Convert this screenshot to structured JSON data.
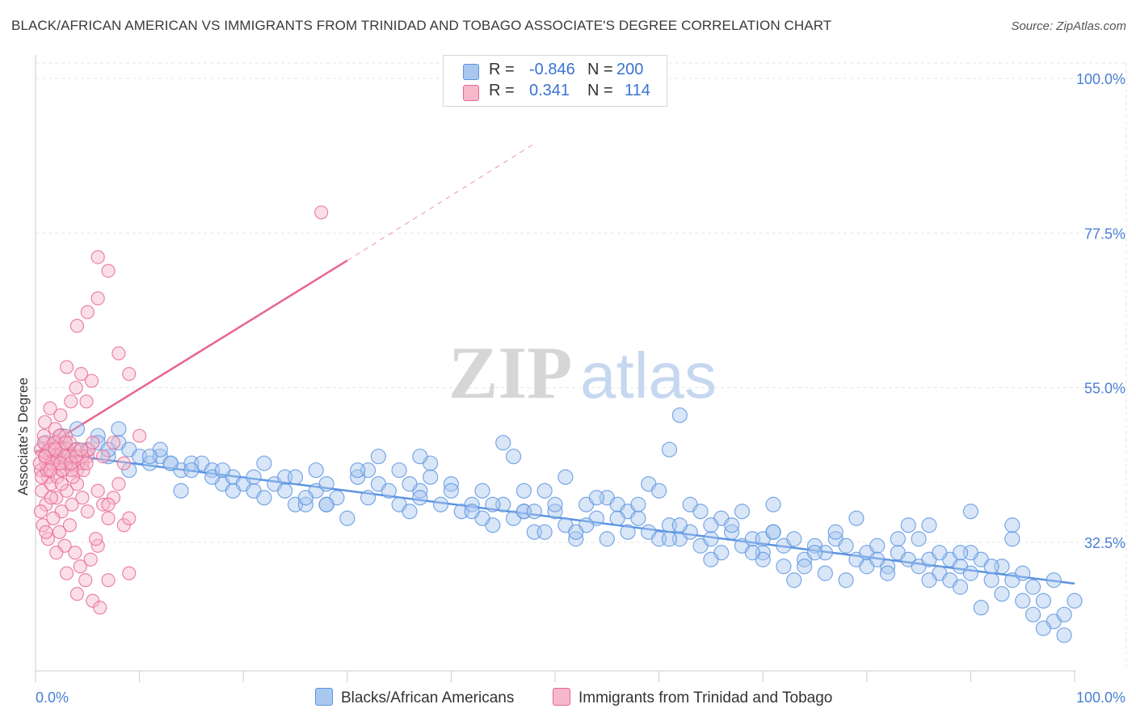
{
  "title": "BLACK/AFRICAN AMERICAN VS IMMIGRANTS FROM TRINIDAD AND TOBAGO ASSOCIATE'S DEGREE CORRELATION CHART",
  "source": "Source: ZipAtlas.com",
  "watermark": {
    "zip": "ZIP",
    "atlas": "atlas"
  },
  "legend": {
    "rows": [
      {
        "r_label": "R =",
        "r_value": "-0.846",
        "n_label": "N =",
        "n_value": "200",
        "color": "#a9c8f0"
      },
      {
        "r_label": "R =",
        "r_value": "0.341",
        "n_label": "N =",
        "n_value": "114",
        "color": "#f7b8cb"
      }
    ]
  },
  "chart_data": {
    "type": "scatter",
    "title": "BLACK/AFRICAN AMERICAN VS IMMIGRANTS FROM TRINIDAD AND TOBAGO ASSOCIATE'S DEGREE CORRELATION CHART",
    "xlabel": "",
    "ylabel": "Associate's Degree",
    "xlim": [
      0,
      100
    ],
    "ylim": [
      14,
      100
    ],
    "x_tick_labels": [
      "0.0%",
      "100.0%"
    ],
    "y_ticks": [
      32.5,
      55.0,
      77.5,
      100.0
    ],
    "y_tick_labels": [
      "32.5%",
      "55.0%",
      "77.5%",
      "100.0%"
    ],
    "grid": true,
    "series": [
      {
        "name": "Blacks/African Americans",
        "color": "#5b93e0",
        "fill": "#a9c8f0",
        "trend": {
          "x0": 0,
          "y0": 45.8,
          "x1": 100,
          "y1": 26.5,
          "style": "solid"
        },
        "points": [
          [
            1,
            47
          ],
          [
            2,
            45
          ],
          [
            2.5,
            48
          ],
          [
            3,
            46
          ],
          [
            4,
            49
          ],
          [
            5,
            46
          ],
          [
            6,
            48
          ],
          [
            7,
            45
          ],
          [
            8,
            47
          ],
          [
            9,
            46
          ],
          [
            10,
            45
          ],
          [
            11,
            44
          ],
          [
            12,
            45
          ],
          [
            13,
            44
          ],
          [
            14,
            43
          ],
          [
            15,
            44
          ],
          [
            16,
            44
          ],
          [
            17,
            43
          ],
          [
            18,
            41
          ],
          [
            19,
            42
          ],
          [
            20,
            41
          ],
          [
            21,
            40
          ],
          [
            22,
            39
          ],
          [
            23,
            41
          ],
          [
            24,
            42
          ],
          [
            25,
            38
          ],
          [
            26,
            38
          ],
          [
            27,
            40
          ],
          [
            28,
            38
          ],
          [
            29,
            39
          ],
          [
            30,
            36
          ],
          [
            31,
            42
          ],
          [
            32,
            39
          ],
          [
            33,
            41
          ],
          [
            34,
            40
          ],
          [
            35,
            38
          ],
          [
            36,
            37
          ],
          [
            37,
            40
          ],
          [
            38,
            42
          ],
          [
            39,
            38
          ],
          [
            40,
            41
          ],
          [
            41,
            37
          ],
          [
            42,
            38
          ],
          [
            43,
            40
          ],
          [
            44,
            35
          ],
          [
            45,
            38
          ],
          [
            46,
            36
          ],
          [
            47,
            37
          ],
          [
            48,
            34
          ],
          [
            49,
            40
          ],
          [
            50,
            37
          ],
          [
            51,
            35
          ],
          [
            52,
            33
          ],
          [
            53,
            38
          ],
          [
            54,
            36
          ],
          [
            55,
            39
          ],
          [
            56,
            38
          ],
          [
            57,
            37
          ],
          [
            58,
            36
          ],
          [
            59,
            34
          ],
          [
            60,
            33
          ],
          [
            61,
            35
          ],
          [
            62,
            33
          ],
          [
            63,
            34
          ],
          [
            64,
            32
          ],
          [
            65,
            33
          ],
          [
            66,
            31
          ],
          [
            67,
            34
          ],
          [
            68,
            32
          ],
          [
            69,
            33
          ],
          [
            70,
            31
          ],
          [
            71,
            34
          ],
          [
            72,
            32
          ],
          [
            73,
            33
          ],
          [
            74,
            30
          ],
          [
            75,
            32
          ],
          [
            76,
            31
          ],
          [
            77,
            33
          ],
          [
            78,
            32
          ],
          [
            79,
            30
          ],
          [
            80,
            31
          ],
          [
            81,
            32
          ],
          [
            82,
            29
          ],
          [
            83,
            31
          ],
          [
            84,
            30
          ],
          [
            85,
            29
          ],
          [
            86,
            30
          ],
          [
            87,
            28
          ],
          [
            88,
            30
          ],
          [
            89,
            29
          ],
          [
            90,
            28
          ],
          [
            91,
            30
          ],
          [
            92,
            27
          ],
          [
            93,
            29
          ],
          [
            94,
            27
          ],
          [
            95,
            28
          ],
          [
            96,
            26
          ],
          [
            97,
            24
          ],
          [
            98,
            21
          ],
          [
            99,
            22
          ],
          [
            46,
            45
          ],
          [
            51,
            42
          ],
          [
            59,
            41
          ],
          [
            62,
            51
          ],
          [
            68,
            37
          ],
          [
            71,
            38
          ],
          [
            79,
            36
          ],
          [
            86,
            35
          ],
          [
            90,
            37
          ],
          [
            94,
            35
          ],
          [
            33,
            45
          ],
          [
            38,
            44
          ],
          [
            27,
            43
          ],
          [
            22,
            44
          ],
          [
            17,
            42
          ],
          [
            12,
            46
          ],
          [
            6,
            47
          ],
          [
            3,
            44
          ],
          [
            9,
            43
          ],
          [
            14,
            40
          ],
          [
            24,
            40
          ],
          [
            35,
            43
          ],
          [
            44,
            38
          ],
          [
            49,
            34
          ],
          [
            55,
            33
          ],
          [
            63,
            38
          ],
          [
            70,
            30
          ],
          [
            76,
            28
          ],
          [
            84,
            35
          ],
          [
            88,
            27
          ],
          [
            95,
            24
          ],
          [
            97,
            20
          ],
          [
            99,
            19
          ],
          [
            100,
            24
          ],
          [
            93,
            25
          ],
          [
            91,
            23
          ],
          [
            89,
            26
          ],
          [
            86,
            27
          ],
          [
            82,
            28
          ],
          [
            78,
            27
          ],
          [
            74,
            29
          ],
          [
            70,
            33
          ],
          [
            66,
            36
          ],
          [
            62,
            35
          ],
          [
            58,
            38
          ],
          [
            54,
            39
          ],
          [
            50,
            38
          ],
          [
            47,
            37
          ],
          [
            43,
            36
          ],
          [
            40,
            40
          ],
          [
            36,
            41
          ],
          [
            32,
            43
          ],
          [
            28,
            41
          ],
          [
            25,
            42
          ],
          [
            21,
            42
          ],
          [
            18,
            43
          ],
          [
            15,
            43
          ],
          [
            11,
            45
          ],
          [
            7,
            46
          ],
          [
            4,
            46
          ],
          [
            8,
            49
          ],
          [
            13,
            44
          ],
          [
            19,
            40
          ],
          [
            26,
            39
          ],
          [
            31,
            43
          ],
          [
            37,
            39
          ],
          [
            42,
            37
          ],
          [
            48,
            37
          ],
          [
            53,
            35
          ],
          [
            57,
            34
          ],
          [
            61,
            33
          ],
          [
            65,
            35
          ],
          [
            69,
            31
          ],
          [
            72,
            29
          ],
          [
            75,
            31
          ],
          [
            80,
            29
          ],
          [
            83,
            33
          ],
          [
            87,
            31
          ],
          [
            92,
            29
          ],
          [
            96,
            22
          ],
          [
            45,
            47
          ],
          [
            61,
            46
          ],
          [
            47,
            40
          ],
          [
            37,
            45
          ],
          [
            28,
            38
          ],
          [
            65,
            30
          ],
          [
            73,
            27
          ],
          [
            81,
            30
          ],
          [
            90,
            31
          ],
          [
            98,
            27
          ],
          [
            52,
            34
          ],
          [
            56,
            36
          ],
          [
            60,
            40
          ],
          [
            64,
            37
          ],
          [
            67,
            35
          ],
          [
            71,
            34
          ],
          [
            77,
            34
          ],
          [
            85,
            33
          ],
          [
            89,
            31
          ],
          [
            94,
            33
          ]
        ]
      },
      {
        "name": "Immigrants from Trinidad and Tobago",
        "color": "#e8668f",
        "fill": "#f7b8cb",
        "trend": {
          "x0": 0,
          "y0": 45.5,
          "x1": 30,
          "y1": 73.5,
          "style": "solid",
          "extended_to": {
            "x": 48,
            "y": 90.5,
            "style": "dashed"
          }
        },
        "points": [
          [
            0.5,
            46
          ],
          [
            1,
            45
          ],
          [
            1.5,
            44
          ],
          [
            2,
            47
          ],
          [
            2.5,
            43
          ],
          [
            3,
            46
          ],
          [
            0.8,
            48
          ],
          [
            1.2,
            42
          ],
          [
            1.8,
            45
          ],
          [
            2.2,
            44
          ],
          [
            0.6,
            40
          ],
          [
            1,
            38
          ],
          [
            1.5,
            41
          ],
          [
            2,
            39
          ],
          [
            2.5,
            37
          ],
          [
            3,
            40
          ],
          [
            3.5,
            38
          ],
          [
            4,
            41
          ],
          [
            4.5,
            39
          ],
          [
            5,
            37
          ],
          [
            0.7,
            35
          ],
          [
            1.2,
            33
          ],
          [
            1.7,
            36
          ],
          [
            2.3,
            34
          ],
          [
            2.8,
            32
          ],
          [
            3.3,
            35
          ],
          [
            3.8,
            31
          ],
          [
            4.3,
            29
          ],
          [
            4.8,
            27
          ],
          [
            5.3,
            30
          ],
          [
            0.9,
            50
          ],
          [
            1.4,
            52
          ],
          [
            1.9,
            49
          ],
          [
            2.4,
            51
          ],
          [
            2.9,
            48
          ],
          [
            3.4,
            53
          ],
          [
            3.9,
            55
          ],
          [
            4.4,
            57
          ],
          [
            4.9,
            53
          ],
          [
            5.4,
            56
          ],
          [
            4,
            64
          ],
          [
            5,
            66
          ],
          [
            6,
            68
          ],
          [
            7,
            72
          ],
          [
            8,
            60
          ],
          [
            9,
            57
          ],
          [
            10,
            48
          ],
          [
            6,
            74
          ],
          [
            27.5,
            80.5
          ],
          [
            3,
            58
          ],
          [
            0.5,
            43
          ],
          [
            1,
            44
          ],
          [
            1.5,
            46
          ],
          [
            2,
            45
          ],
          [
            2.5,
            46
          ],
          [
            3,
            44
          ],
          [
            3.5,
            45
          ],
          [
            4,
            43
          ],
          [
            4.5,
            44
          ],
          [
            5,
            45
          ],
          [
            0.6,
            42
          ],
          [
            1.1,
            43
          ],
          [
            1.6,
            44
          ],
          [
            2.1,
            42
          ],
          [
            2.6,
            43
          ],
          [
            3.1,
            45
          ],
          [
            3.6,
            42
          ],
          [
            4.1,
            44
          ],
          [
            4.6,
            43
          ],
          [
            5.1,
            46
          ],
          [
            6,
            40
          ],
          [
            6.5,
            38
          ],
          [
            7,
            36
          ],
          [
            7.5,
            39
          ],
          [
            8,
            41
          ],
          [
            8.5,
            35
          ],
          [
            9,
            28
          ],
          [
            6,
            32
          ],
          [
            7,
            27
          ],
          [
            5.5,
            24
          ],
          [
            4,
            25
          ],
          [
            3,
            28
          ],
          [
            2,
            31
          ],
          [
            1,
            34
          ],
          [
            0.5,
            37
          ],
          [
            1.5,
            39
          ],
          [
            2.5,
            41
          ],
          [
            3.5,
            43
          ],
          [
            4.5,
            45
          ],
          [
            5.5,
            47
          ],
          [
            6.5,
            45
          ],
          [
            7.5,
            47
          ],
          [
            8.5,
            44
          ],
          [
            0.8,
            47
          ],
          [
            1.3,
            46
          ],
          [
            1.8,
            47
          ],
          [
            2.3,
            48
          ],
          [
            2.8,
            45
          ],
          [
            3.3,
            47
          ],
          [
            3.8,
            46
          ],
          [
            0.4,
            44
          ],
          [
            0.9,
            45
          ],
          [
            1.4,
            43
          ],
          [
            1.9,
            46
          ],
          [
            2.4,
            44
          ],
          [
            2.9,
            47
          ],
          [
            3.4,
            44
          ],
          [
            3.9,
            45
          ],
          [
            4.4,
            46
          ],
          [
            4.9,
            44
          ],
          [
            9,
            36
          ],
          [
            5.8,
            33
          ],
          [
            6.2,
            23
          ],
          [
            7,
            38
          ]
        ]
      }
    ]
  },
  "bottom_legend": [
    {
      "label": "Blacks/African Americans",
      "color": "#a9c8f0"
    },
    {
      "label": "Immigrants from Trinidad and Tobago",
      "color": "#f7b8cb"
    }
  ]
}
